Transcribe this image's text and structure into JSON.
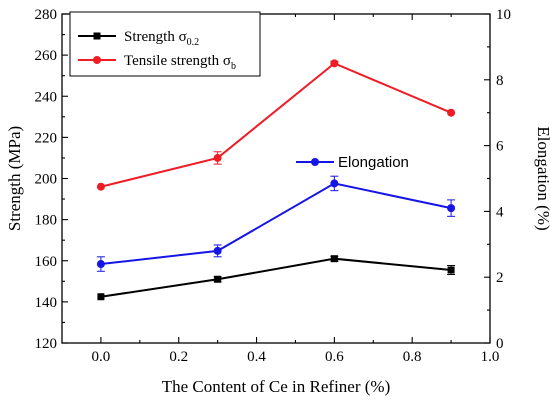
{
  "chart_data": {
    "type": "line",
    "xlabel": "The Content of Ce in Refiner (%)",
    "ylabel": "Strength (MPa)",
    "y2label": "Elongation (%)",
    "xlim": [
      -0.1,
      1.0
    ],
    "ylim": [
      120,
      280
    ],
    "y2lim": [
      0,
      10
    ],
    "x_ticks": [
      "0.0",
      "0.2",
      "0.4",
      "0.6",
      "0.8",
      "1.0"
    ],
    "x_tick_values": [
      0.0,
      0.2,
      0.4,
      0.6,
      0.8,
      1.0
    ],
    "y_ticks": [
      "120",
      "140",
      "160",
      "180",
      "200",
      "220",
      "240",
      "260",
      "280"
    ],
    "y_tick_values": [
      120,
      140,
      160,
      180,
      200,
      220,
      240,
      260,
      280
    ],
    "y2_ticks": [
      "0",
      "2",
      "4",
      "6",
      "8",
      "10"
    ],
    "y2_tick_values": [
      0,
      2,
      4,
      6,
      8,
      10
    ],
    "x": [
      0.0,
      0.3,
      0.6,
      0.9
    ],
    "series": [
      {
        "name": "Strength σ0.2",
        "name_main": "Strength σ",
        "name_sub": "0.2",
        "axis": "left",
        "color": "#000000",
        "marker": "square",
        "values": [
          142.5,
          151,
          161,
          155.5
        ],
        "errors": [
          0,
          1.2,
          1.2,
          2.2
        ]
      },
      {
        "name": "Tensile strength σb",
        "name_main": "Tensile strength σ",
        "name_sub": "b",
        "axis": "left",
        "color": "#ee1c25",
        "marker": "circle",
        "values": [
          196,
          210,
          256,
          232
        ],
        "errors": [
          0,
          3,
          1,
          0
        ]
      },
      {
        "name": "Elongation",
        "axis": "right",
        "color": "#1515e6",
        "marker": "circle",
        "values": [
          2.4,
          2.8,
          4.85,
          4.1
        ],
        "errors": [
          0.22,
          0.18,
          0.22,
          0.25
        ]
      }
    ],
    "legend": {
      "position": "top-left"
    },
    "grid": false
  }
}
